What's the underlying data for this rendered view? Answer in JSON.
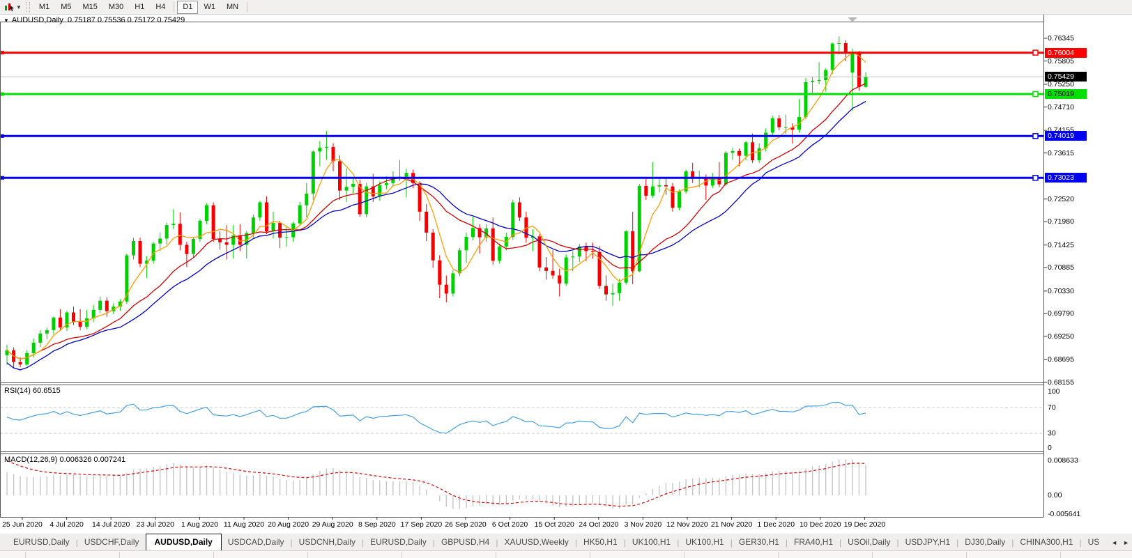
{
  "toolbar": {
    "timeframes": [
      "M1",
      "M5",
      "M15",
      "M30",
      "H1",
      "H4",
      "D1",
      "W1",
      "MN"
    ],
    "active_timeframe": "D1"
  },
  "chart": {
    "symbol_period": "AUDUSD,Daily",
    "ohlc_text": "0.75187 0.75536 0.75172 0.75429",
    "open": "0.75187",
    "high": "0.75536",
    "low": "0.75172",
    "close": "0.75429"
  },
  "rsi": {
    "label": "RSI(14) 60.6515",
    "period": 14,
    "value": "60.6515",
    "axis_labels": [
      "100",
      "70",
      "30",
      "0"
    ]
  },
  "macd": {
    "label": "MACD(12,26,9) 0.006326 0.007241",
    "value": "0.006326",
    "signal_value": "0.007241",
    "axis_labels": [
      "0.008633",
      "0.00",
      "-0.005641"
    ]
  },
  "colors": {
    "bull": "#00d000",
    "bear": "#f40000",
    "ma_fast": "#ff9c00",
    "ma_mid": "#d40000",
    "ma_slow": "#0000c0",
    "hline_red": "#ff0000",
    "hline_green": "#00e000",
    "hline_blue": "#0000f0",
    "current_line": "#c0c0c0",
    "rsi_line": "#43a0e4",
    "macd_hist": "#c6c6c6",
    "macd_signal": "#e00000",
    "border": "#555555"
  },
  "chart_data": {
    "type": "candlestick",
    "symbol": "AUDUSD",
    "timeframe": "Daily",
    "y_axis_ticks": [
      "0.76345",
      "0.75805",
      "0.75250",
      "0.74710",
      "0.74155",
      "0.73615",
      "0.72520",
      "0.71980",
      "0.71425",
      "0.70885",
      "0.70330",
      "0.69790",
      "0.69250",
      "0.68695",
      "0.68155"
    ],
    "x_labels": [
      "25 Jun 2020",
      "4 Jul 2020",
      "14 Jul 2020",
      "23 Jul 2020",
      "1 Aug 2020",
      "11 Aug 2020",
      "20 Aug 2020",
      "29 Aug 2020",
      "8 Sep 2020",
      "17 Sep 2020",
      "26 Sep 2020",
      "6 Oct 2020",
      "15 Oct 2020",
      "24 Oct 2020",
      "3 Nov 2020",
      "12 Nov 2020",
      "21 Nov 2020",
      "1 Dec 2020",
      "10 Dec 2020",
      "19 Dec 2020"
    ],
    "hlines": [
      {
        "price": 0.76004,
        "label": "0.76004",
        "color": "#ff0000",
        "label_bg": "#ff0000",
        "label_fg": "#ffffff"
      },
      {
        "price": 0.75019,
        "label": "0.75019",
        "color": "#00e000",
        "label_bg": "#00e000",
        "label_fg": "#000000"
      },
      {
        "price": 0.74019,
        "label": "0.74019",
        "color": "#0000f0",
        "label_bg": "#0000f0",
        "label_fg": "#ffffff"
      },
      {
        "price": 0.73023,
        "label": "0.73023",
        "color": "#0000f0",
        "label_bg": "#0000f0",
        "label_fg": "#ffffff"
      }
    ],
    "current_price": {
      "value": 0.75429,
      "label": "0.75429",
      "label_bg": "#000000",
      "label_fg": "#ffffff"
    },
    "moving_averages": [
      {
        "name": "fast",
        "period": 5,
        "color": "#ff9c00"
      },
      {
        "name": "mid",
        "period": 14,
        "color": "#d40000"
      },
      {
        "name": "slow",
        "period": 20,
        "color": "#0000c0"
      }
    ],
    "ohlc": [
      [
        0.688,
        0.6905,
        0.6858,
        0.6892
      ],
      [
        0.6892,
        0.6899,
        0.685,
        0.6864
      ],
      [
        0.6864,
        0.6875,
        0.6852,
        0.6858
      ],
      [
        0.6858,
        0.6892,
        0.6855,
        0.6885
      ],
      [
        0.6885,
        0.692,
        0.6875,
        0.691
      ],
      [
        0.691,
        0.694,
        0.69,
        0.6932
      ],
      [
        0.6932,
        0.6946,
        0.6918,
        0.694
      ],
      [
        0.694,
        0.6972,
        0.693,
        0.697
      ],
      [
        0.697,
        0.699,
        0.694,
        0.6946
      ],
      [
        0.6946,
        0.6986,
        0.6938,
        0.6982
      ],
      [
        0.6982,
        0.6996,
        0.6952,
        0.696
      ],
      [
        0.696,
        0.699,
        0.694,
        0.6948
      ],
      [
        0.6948,
        0.6988,
        0.6942,
        0.6968
      ],
      [
        0.6968,
        0.7,
        0.696,
        0.6988
      ],
      [
        0.6988,
        0.702,
        0.698,
        0.701
      ],
      [
        0.701,
        0.7018,
        0.6972,
        0.6985
      ],
      [
        0.6985,
        0.7004,
        0.6978,
        0.6996
      ],
      [
        0.6996,
        0.7014,
        0.6986,
        0.7008
      ],
      [
        0.7008,
        0.7122,
        0.7002,
        0.7118
      ],
      [
        0.7118,
        0.716,
        0.7108,
        0.7152
      ],
      [
        0.7152,
        0.716,
        0.709,
        0.7098
      ],
      [
        0.7098,
        0.7116,
        0.7064,
        0.7105
      ],
      [
        0.7105,
        0.715,
        0.7098,
        0.7146
      ],
      [
        0.7146,
        0.7172,
        0.7128,
        0.7158
      ],
      [
        0.7158,
        0.7196,
        0.7144,
        0.719
      ],
      [
        0.719,
        0.7228,
        0.718,
        0.7193
      ],
      [
        0.7193,
        0.722,
        0.713,
        0.7143
      ],
      [
        0.7143,
        0.715,
        0.709,
        0.7121
      ],
      [
        0.7121,
        0.7162,
        0.7112,
        0.7157
      ],
      [
        0.7157,
        0.7205,
        0.715,
        0.72
      ],
      [
        0.72,
        0.7242,
        0.7192,
        0.7237
      ],
      [
        0.7237,
        0.7244,
        0.715,
        0.7157
      ],
      [
        0.7157,
        0.7176,
        0.7132,
        0.7149
      ],
      [
        0.7149,
        0.719,
        0.7108,
        0.7143
      ],
      [
        0.7143,
        0.719,
        0.711,
        0.7165
      ],
      [
        0.7165,
        0.7192,
        0.7128,
        0.7143
      ],
      [
        0.7143,
        0.7176,
        0.711,
        0.7171
      ],
      [
        0.7171,
        0.7215,
        0.716,
        0.7208
      ],
      [
        0.7208,
        0.7248,
        0.72,
        0.7244
      ],
      [
        0.7244,
        0.7258,
        0.7168,
        0.7175
      ],
      [
        0.7175,
        0.7222,
        0.7158,
        0.7195
      ],
      [
        0.7195,
        0.72,
        0.7135,
        0.716
      ],
      [
        0.716,
        0.7186,
        0.7138,
        0.7161
      ],
      [
        0.7161,
        0.7198,
        0.715,
        0.7194
      ],
      [
        0.7194,
        0.7245,
        0.7188,
        0.7237
      ],
      [
        0.7237,
        0.729,
        0.7208,
        0.7265
      ],
      [
        0.7265,
        0.7368,
        0.725,
        0.7365
      ],
      [
        0.7365,
        0.739,
        0.733,
        0.7374
      ],
      [
        0.7374,
        0.7414,
        0.7345,
        0.7376
      ],
      [
        0.7376,
        0.7385,
        0.7318,
        0.7342
      ],
      [
        0.7342,
        0.7356,
        0.725,
        0.7272
      ],
      [
        0.7272,
        0.7325,
        0.7245,
        0.7281
      ],
      [
        0.7281,
        0.73,
        0.7265,
        0.7288
      ],
      [
        0.7288,
        0.7298,
        0.721,
        0.7216
      ],
      [
        0.7216,
        0.729,
        0.7208,
        0.7282
      ],
      [
        0.7282,
        0.7312,
        0.7245,
        0.7258
      ],
      [
        0.7258,
        0.7294,
        0.7248,
        0.7285
      ],
      [
        0.7285,
        0.7306,
        0.7275,
        0.729
      ],
      [
        0.729,
        0.7318,
        0.7282,
        0.7302
      ],
      [
        0.7302,
        0.7345,
        0.7295,
        0.7305
      ],
      [
        0.7305,
        0.7324,
        0.7256,
        0.7314
      ],
      [
        0.7314,
        0.7322,
        0.7278,
        0.729
      ],
      [
        0.729,
        0.7294,
        0.72,
        0.7222
      ],
      [
        0.7222,
        0.724,
        0.7152,
        0.7172
      ],
      [
        0.7172,
        0.718,
        0.7088,
        0.7106
      ],
      [
        0.7106,
        0.7118,
        0.7016,
        0.7048
      ],
      [
        0.7048,
        0.707,
        0.7006,
        0.7027
      ],
      [
        0.7027,
        0.7082,
        0.702,
        0.7075
      ],
      [
        0.7075,
        0.7136,
        0.7068,
        0.713
      ],
      [
        0.713,
        0.7172,
        0.71,
        0.7162
      ],
      [
        0.7162,
        0.721,
        0.7154,
        0.7183
      ],
      [
        0.7183,
        0.7192,
        0.7122,
        0.7161
      ],
      [
        0.7161,
        0.7192,
        0.715,
        0.7182
      ],
      [
        0.7182,
        0.7208,
        0.7096,
        0.7105
      ],
      [
        0.7105,
        0.7146,
        0.7098,
        0.7139
      ],
      [
        0.7139,
        0.7172,
        0.713,
        0.7162
      ],
      [
        0.7162,
        0.725,
        0.7155,
        0.7244
      ],
      [
        0.7244,
        0.7256,
        0.72,
        0.7208
      ],
      [
        0.7208,
        0.7222,
        0.7148,
        0.716
      ],
      [
        0.716,
        0.718,
        0.7128,
        0.7163
      ],
      [
        0.7163,
        0.7168,
        0.708,
        0.7089
      ],
      [
        0.7089,
        0.7114,
        0.706,
        0.7081
      ],
      [
        0.7081,
        0.713,
        0.7062,
        0.707
      ],
      [
        0.707,
        0.7086,
        0.702,
        0.7051
      ],
      [
        0.7051,
        0.712,
        0.7045,
        0.7113
      ],
      [
        0.7113,
        0.7128,
        0.708,
        0.7115
      ],
      [
        0.7115,
        0.7145,
        0.7102,
        0.7139
      ],
      [
        0.7139,
        0.7148,
        0.7105,
        0.7128
      ],
      [
        0.7128,
        0.7148,
        0.711,
        0.7126
      ],
      [
        0.7126,
        0.714,
        0.7038,
        0.7045
      ],
      [
        0.7045,
        0.707,
        0.701,
        0.7025
      ],
      [
        0.7025,
        0.705,
        0.6998,
        0.7028
      ],
      [
        0.7028,
        0.7062,
        0.701,
        0.7053
      ],
      [
        0.7053,
        0.7178,
        0.7048,
        0.7175
      ],
      [
        0.7175,
        0.7222,
        0.7049,
        0.708
      ],
      [
        0.708,
        0.7288,
        0.7078,
        0.7283
      ],
      [
        0.7283,
        0.73,
        0.725,
        0.726
      ],
      [
        0.726,
        0.734,
        0.7255,
        0.7282
      ],
      [
        0.7282,
        0.7302,
        0.7268,
        0.7285
      ],
      [
        0.7285,
        0.7302,
        0.7262,
        0.7282
      ],
      [
        0.7282,
        0.729,
        0.7222,
        0.7231
      ],
      [
        0.7231,
        0.7275,
        0.7225,
        0.727
      ],
      [
        0.727,
        0.7322,
        0.7265,
        0.7318
      ],
      [
        0.7318,
        0.7338,
        0.729,
        0.73
      ],
      [
        0.73,
        0.732,
        0.728,
        0.7302
      ],
      [
        0.7302,
        0.731,
        0.725,
        0.7284
      ],
      [
        0.7284,
        0.7314,
        0.7278,
        0.7303
      ],
      [
        0.7303,
        0.734,
        0.728,
        0.7287
      ],
      [
        0.7287,
        0.7366,
        0.7283,
        0.7362
      ],
      [
        0.7362,
        0.7374,
        0.7345,
        0.7366
      ],
      [
        0.7366,
        0.7372,
        0.733,
        0.7355
      ],
      [
        0.7355,
        0.739,
        0.7344,
        0.7387
      ],
      [
        0.7387,
        0.7408,
        0.7338,
        0.7344
      ],
      [
        0.7344,
        0.7385,
        0.7338,
        0.7373
      ],
      [
        0.7373,
        0.742,
        0.7365,
        0.741
      ],
      [
        0.741,
        0.745,
        0.74,
        0.7444
      ],
      [
        0.7444,
        0.7452,
        0.7416,
        0.7423
      ],
      [
        0.7423,
        0.7453,
        0.7406,
        0.7423
      ],
      [
        0.7423,
        0.7432,
        0.7384,
        0.7417
      ],
      [
        0.7417,
        0.749,
        0.741,
        0.7447
      ],
      [
        0.7447,
        0.754,
        0.7442,
        0.753
      ],
      [
        0.753,
        0.7542,
        0.7505,
        0.7533
      ],
      [
        0.7533,
        0.7578,
        0.7525,
        0.7535
      ],
      [
        0.7535,
        0.7563,
        0.7508,
        0.7559
      ],
      [
        0.7559,
        0.7624,
        0.755,
        0.7622
      ],
      [
        0.7622,
        0.7639,
        0.7596,
        0.7623
      ],
      [
        0.7623,
        0.763,
        0.758,
        0.76
      ],
      [
        0.7553,
        0.761,
        0.7462,
        0.7601
      ],
      [
        0.7601,
        0.7605,
        0.751,
        0.7519
      ],
      [
        0.75187,
        0.75536,
        0.75172,
        0.75429
      ]
    ]
  },
  "tabs": {
    "items": [
      {
        "label": "EURUSD,Daily",
        "active": false
      },
      {
        "label": "USDCHF,Daily",
        "active": false
      },
      {
        "label": "AUDUSD,Daily",
        "active": true
      },
      {
        "label": "USDCAD,Daily",
        "active": false
      },
      {
        "label": "USDCNH,Daily",
        "active": false
      },
      {
        "label": "EURUSD,Daily",
        "active": false
      },
      {
        "label": "GBPUSD,H4",
        "active": false
      },
      {
        "label": "XAUUSD,Weekly",
        "active": false
      },
      {
        "label": "HK50,H1",
        "active": false
      },
      {
        "label": "UK100,H1",
        "active": false
      },
      {
        "label": "UK100,H1",
        "active": false
      },
      {
        "label": "GER30,H1",
        "active": false
      },
      {
        "label": "FRA40,H1",
        "active": false
      },
      {
        "label": "USOil,Daily",
        "active": false
      },
      {
        "label": "USDJPY,H1",
        "active": false
      },
      {
        "label": "DJ30,Daily",
        "active": false
      },
      {
        "label": "CHINA300,H1",
        "active": false
      },
      {
        "label": "US",
        "active": false
      }
    ],
    "scroll_left": "◄",
    "scroll_right": "►"
  }
}
